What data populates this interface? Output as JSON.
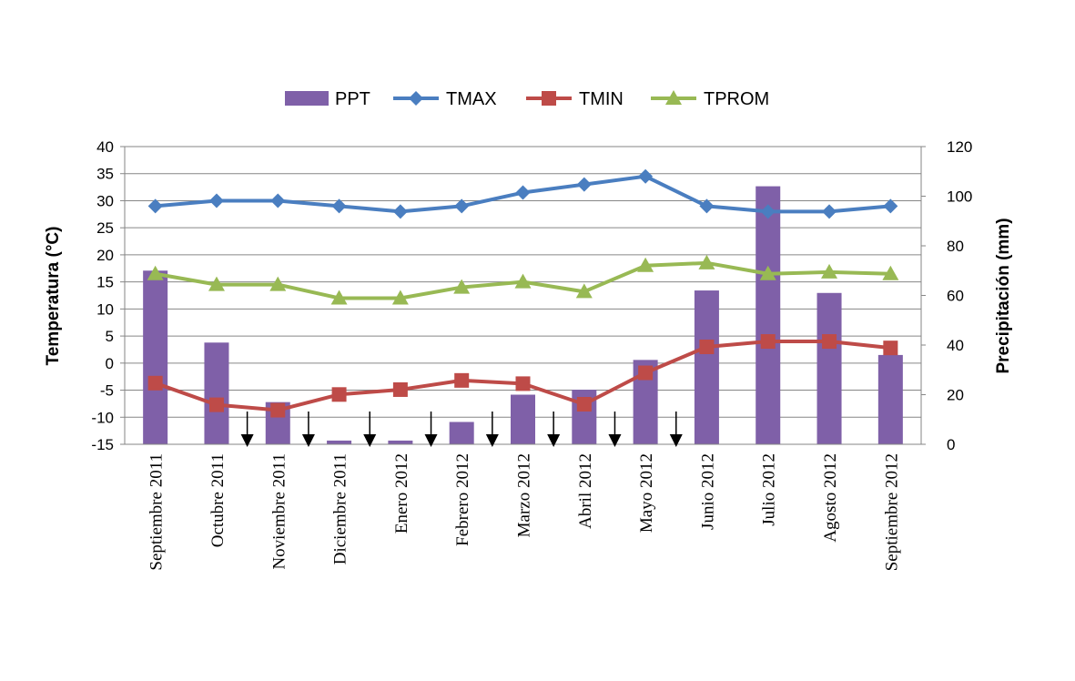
{
  "chart_data": {
    "type": "bar+line",
    "title": "",
    "categories": [
      "Septiembre 2011",
      "Octubre 2011",
      "Noviembre  2011",
      "Diciembre  2011",
      "Enero 2012",
      "Febrero 2012",
      "Marzo 2012",
      "Abril 2012",
      "Mayo 2012",
      "Junio 2012",
      "Julio 2012",
      "Agosto 2012",
      "Septiembre 2012"
    ],
    "left_axis": {
      "label": "Temperatura (°C)",
      "min": -15,
      "max": 40,
      "step": 5
    },
    "right_axis": {
      "label": "Precipitación (mm)",
      "min": 0,
      "max": 120,
      "step": 20
    },
    "legend_position": "top",
    "grid": true,
    "series": [
      {
        "name": "PPT",
        "type": "bar",
        "axis": "right",
        "color": "#7F60A8",
        "values": [
          70,
          41,
          17,
          1.5,
          1.5,
          9,
          20,
          22,
          34,
          62,
          104,
          61,
          36
        ]
      },
      {
        "name": "TMAX",
        "type": "line",
        "axis": "left",
        "color": "#4A7EC0",
        "marker": "diamond",
        "values": [
          29,
          30,
          30,
          29,
          28,
          29,
          31.5,
          33,
          34.5,
          29,
          28,
          28,
          29
        ]
      },
      {
        "name": "TMIN",
        "type": "line",
        "axis": "left",
        "color": "#BE4B48",
        "marker": "square",
        "values": [
          -3.7,
          -7.7,
          -8.7,
          -5.8,
          -4.9,
          -3.2,
          -3.8,
          -7.6,
          -1.8,
          3,
          4,
          4,
          2.8
        ]
      },
      {
        "name": "TPROM",
        "type": "line",
        "axis": "left",
        "color": "#98B954",
        "marker": "triangle",
        "values": [
          16.5,
          14.5,
          14.5,
          12,
          12,
          14,
          15,
          13.2,
          18,
          18.5,
          16.5,
          16.8,
          16.5
        ]
      }
    ],
    "annotations": {
      "type": "down-arrows",
      "between_categories": [
        [
          1,
          2
        ],
        [
          2,
          3
        ],
        [
          3,
          4
        ],
        [
          4,
          5
        ],
        [
          5,
          6
        ],
        [
          6,
          7
        ],
        [
          7,
          8
        ],
        [
          8,
          9
        ]
      ]
    }
  }
}
